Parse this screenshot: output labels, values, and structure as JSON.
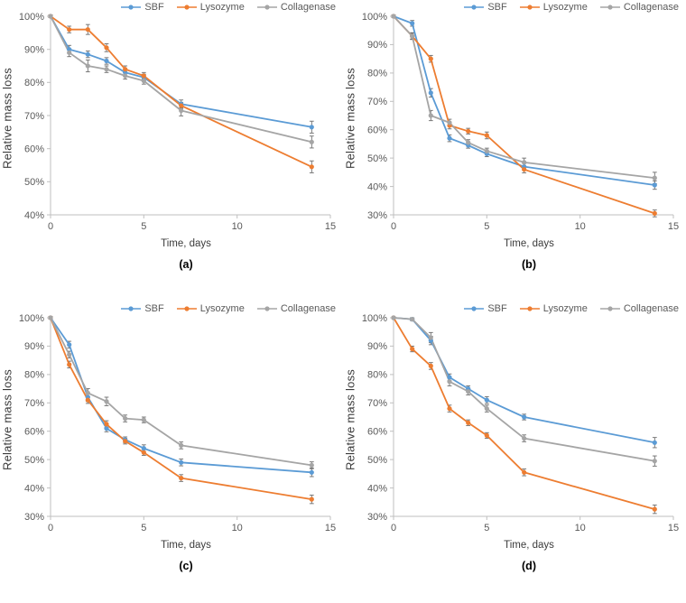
{
  "page": {
    "background": "#ffffff"
  },
  "series_colors": {
    "SBF": "#5B9BD5",
    "Lysozyme": "#ED7D31",
    "Collagenase": "#A5A5A5"
  },
  "error_bar_color": "#6e6e6e",
  "axis_color": "#BFBFBF",
  "chart_data": [
    {
      "id": "a",
      "type": "line",
      "panel_label": "(a)",
      "xlabel": "Time, days",
      "ylabel": "Relative mass loss",
      "x": [
        0,
        1,
        2,
        3,
        4,
        5,
        7,
        14
      ],
      "xlim": [
        0,
        15
      ],
      "xticks": [
        0,
        5,
        10,
        15
      ],
      "ylim": [
        40,
        100
      ],
      "yticks": [
        40,
        50,
        60,
        70,
        80,
        90,
        100
      ],
      "grid": false,
      "legend_position": "top-right",
      "legend": [
        "SBF",
        "Lysozyme",
        "Collagenase"
      ],
      "series": [
        {
          "name": "SBF",
          "color": "#5B9BD5",
          "values": [
            100,
            90,
            88.5,
            86.5,
            83,
            81.5,
            73.5,
            66.5
          ],
          "err": [
            0.4,
            1.2,
            1,
            1,
            1,
            1,
            1.2,
            1.8
          ]
        },
        {
          "name": "Lysozyme",
          "color": "#ED7D31",
          "values": [
            100,
            96,
            96,
            90.5,
            84,
            82,
            73,
            54.5
          ],
          "err": [
            0.4,
            1,
            1.5,
            1.2,
            1,
            1,
            1,
            1.8
          ]
        },
        {
          "name": "Collagenase",
          "color": "#A5A5A5",
          "values": [
            100,
            89,
            85,
            84,
            82,
            80.5,
            71.5,
            62
          ],
          "err": [
            0.4,
            1.2,
            1.8,
            1,
            1,
            1,
            1.6,
            1.8
          ]
        }
      ]
    },
    {
      "id": "b",
      "type": "line",
      "panel_label": "(b)",
      "xlabel": "Time, days",
      "ylabel": "Relative mass loss",
      "x": [
        0,
        1,
        2,
        3,
        4,
        5,
        7,
        14
      ],
      "xlim": [
        0,
        15
      ],
      "xticks": [
        0,
        5,
        10,
        15
      ],
      "ylim": [
        30,
        100
      ],
      "yticks": [
        30,
        40,
        50,
        60,
        70,
        80,
        90,
        100
      ],
      "grid": false,
      "legend_position": "top-right",
      "legend": [
        "SBF",
        "Lysozyme",
        "Collagenase"
      ],
      "series": [
        {
          "name": "SBF",
          "color": "#5B9BD5",
          "values": [
            100,
            97.5,
            73,
            57,
            54.5,
            51.5,
            47,
            40.5
          ],
          "err": [
            0.4,
            1,
            1.5,
            1.2,
            1,
            1,
            1.2,
            1.5
          ]
        },
        {
          "name": "Lysozyme",
          "color": "#ED7D31",
          "values": [
            100,
            93,
            85,
            61.5,
            59.5,
            58,
            46,
            30.5
          ],
          "err": [
            0.4,
            1,
            1.2,
            1.2,
            1,
            1.2,
            1.2,
            1.2
          ]
        },
        {
          "name": "Collagenase",
          "color": "#A5A5A5",
          "values": [
            100,
            93,
            65,
            62.5,
            55.5,
            52.5,
            48.5,
            43
          ],
          "err": [
            0.4,
            1.2,
            1.8,
            1.2,
            1,
            1,
            1.5,
            2
          ]
        }
      ]
    },
    {
      "id": "c",
      "type": "line",
      "panel_label": "(c)",
      "xlabel": "Time, days",
      "ylabel": "Relative mass loss",
      "x": [
        0,
        1,
        2,
        3,
        4,
        5,
        7,
        14
      ],
      "xlim": [
        0,
        15
      ],
      "xticks": [
        0,
        5,
        10,
        15
      ],
      "ylim": [
        30,
        100
      ],
      "yticks": [
        30,
        40,
        50,
        60,
        70,
        80,
        90,
        100
      ],
      "grid": false,
      "legend_position": "top-right",
      "legend": [
        "SBF",
        "Lysozyme",
        "Collagenase"
      ],
      "series": [
        {
          "name": "SBF",
          "color": "#5B9BD5",
          "values": [
            100,
            90.5,
            72,
            61,
            57,
            54,
            49,
            45.5
          ],
          "err": [
            0.4,
            1.2,
            1.5,
            1.2,
            1,
            1.2,
            1.2,
            1.5
          ]
        },
        {
          "name": "Lysozyme",
          "color": "#ED7D31",
          "values": [
            100,
            83.5,
            71,
            62.5,
            56.5,
            52.5,
            43.5,
            36
          ],
          "err": [
            0.4,
            1.2,
            1.2,
            1.2,
            1,
            1,
            1.2,
            1.5
          ]
        },
        {
          "name": "Collagenase",
          "color": "#A5A5A5",
          "values": [
            100,
            87,
            73.5,
            70.5,
            64.5,
            64,
            55,
            48
          ],
          "err": [
            0.4,
            1.2,
            1.5,
            1.5,
            1.2,
            1,
            1.2,
            1.2
          ]
        }
      ]
    },
    {
      "id": "d",
      "type": "line",
      "panel_label": "(d)",
      "xlabel": "Time, days",
      "ylabel": "Relative mass loss",
      "x": [
        0,
        1,
        2,
        3,
        4,
        5,
        7,
        14
      ],
      "xlim": [
        0,
        15
      ],
      "xticks": [
        0,
        5,
        10,
        15
      ],
      "ylim": [
        30,
        100
      ],
      "yticks": [
        30,
        40,
        50,
        60,
        70,
        80,
        90,
        100
      ],
      "grid": false,
      "legend_position": "top-right",
      "legend": [
        "SBF",
        "Lysozyme",
        "Collagenase"
      ],
      "series": [
        {
          "name": "SBF",
          "color": "#5B9BD5",
          "values": [
            100,
            99.5,
            92,
            79,
            75,
            71,
            65,
            56
          ],
          "err": [
            0.3,
            0.5,
            1.5,
            1.2,
            1,
            1.2,
            1,
            1.8
          ]
        },
        {
          "name": "Lysozyme",
          "color": "#ED7D31",
          "values": [
            100,
            89,
            83,
            68,
            63,
            58.5,
            45.5,
            32.5
          ],
          "err": [
            0.3,
            1,
            1.2,
            1.2,
            1,
            1,
            1.2,
            1.5
          ]
        },
        {
          "name": "Collagenase",
          "color": "#A5A5A5",
          "values": [
            100,
            99.5,
            93,
            77.5,
            74,
            68,
            57.5,
            49.5
          ],
          "err": [
            0.3,
            0.5,
            1.8,
            1.5,
            1.2,
            1.2,
            1.2,
            1.8
          ]
        }
      ]
    }
  ]
}
